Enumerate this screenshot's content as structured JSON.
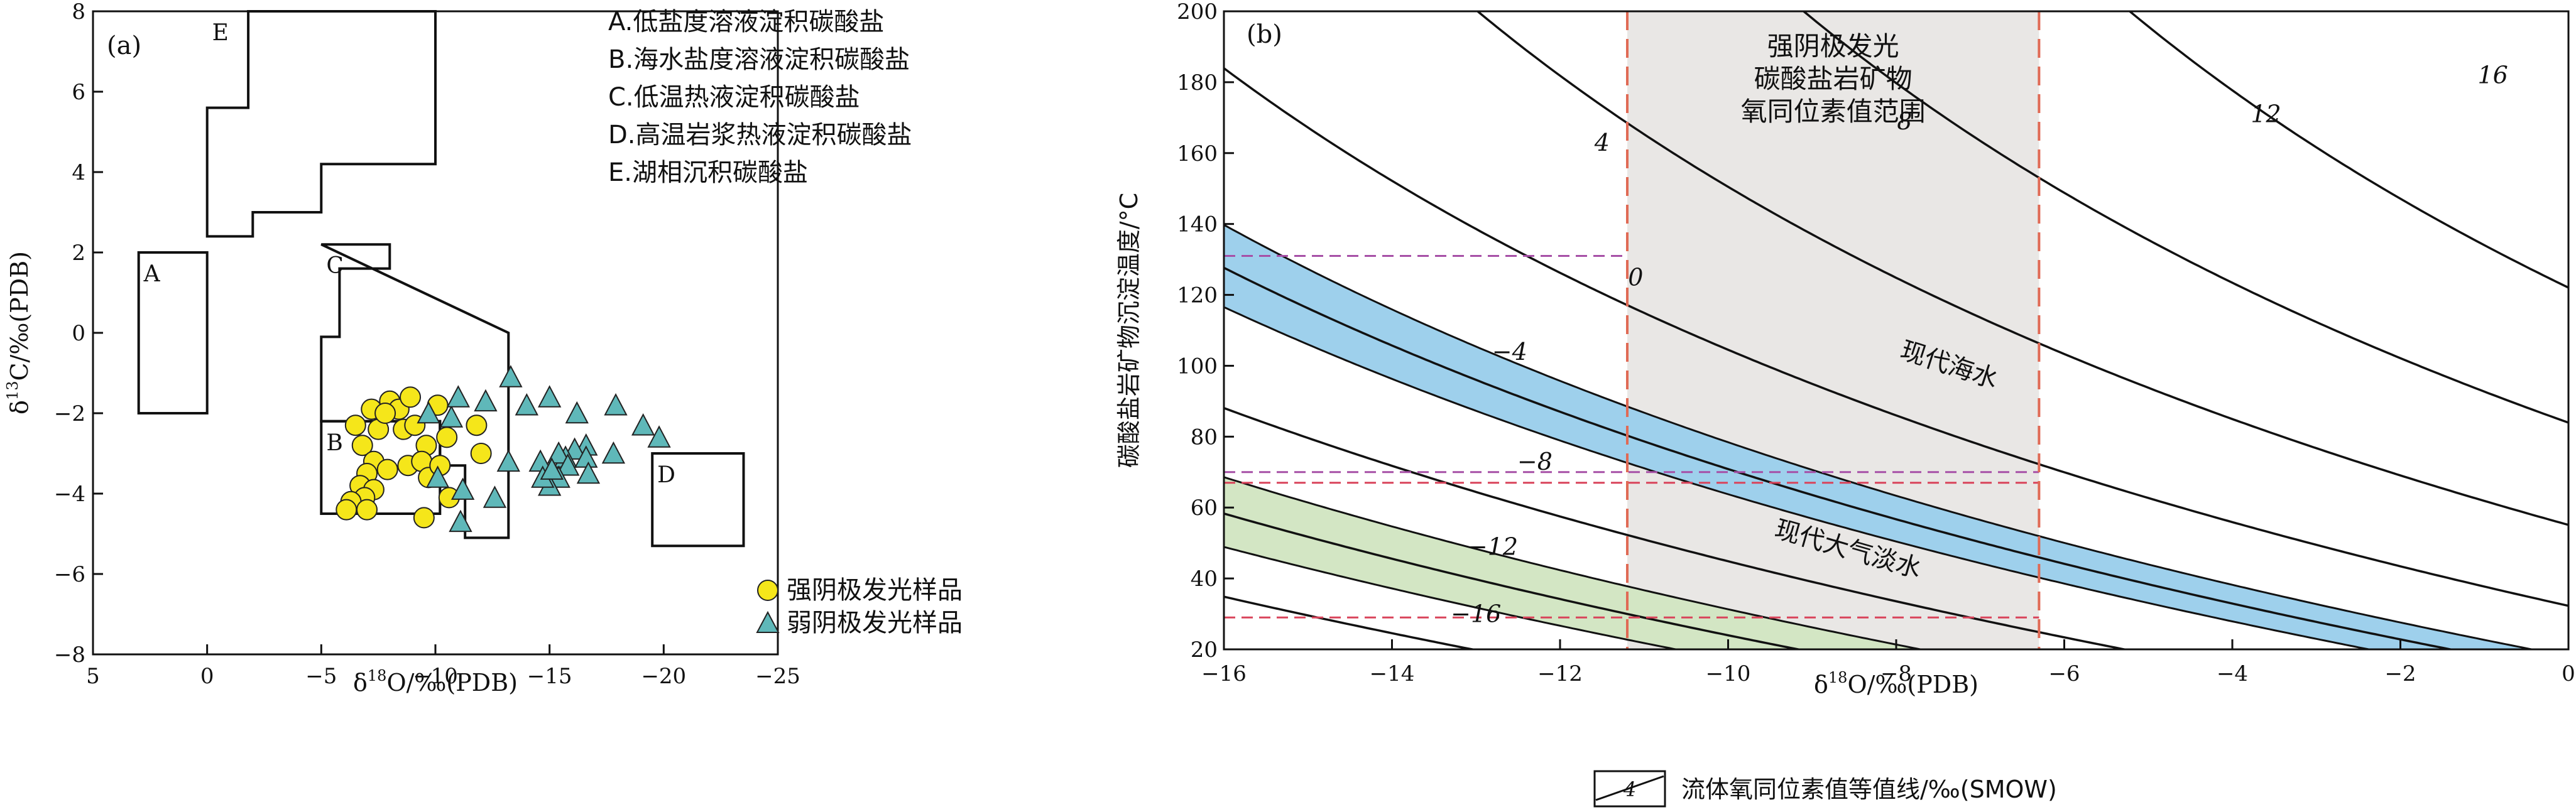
{
  "chart_data": [
    {
      "panel": "(a)",
      "type": "scatter",
      "xlabel_pre": "δ",
      "xlabel_sup": "18",
      "xlabel_post": "O/‰(PDB)",
      "ylabel_pre": "δ",
      "ylabel_sup": "13",
      "ylabel_post": "C/‰(PDB)",
      "xlim": [
        5,
        -25
      ],
      "ylim": [
        -8,
        8
      ],
      "xticks": [
        5,
        0,
        -5,
        -10,
        -15,
        -20,
        -25
      ],
      "yticks": [
        -8,
        -6,
        -4,
        -2,
        0,
        2,
        4,
        6,
        8
      ],
      "xtick_labels": [
        "5",
        "0",
        "−5",
        "−10",
        "−15",
        "−20",
        "−25"
      ],
      "ytick_labels": [
        "−8",
        "−6",
        "−4",
        "−2",
        "0",
        "2",
        "4",
        "6",
        "8"
      ],
      "region_key": [
        "A.低盐度溶液淀积碳酸盐",
        "B.海水盐度溶液淀积碳酸盐",
        "C.低温热液淀积碳酸盐",
        "D.高温岩浆热液淀积碳酸盐",
        "E.湖相沉积碳酸盐"
      ],
      "regions": [
        {
          "label": "A",
          "polygon": [
            [
              3,
              2
            ],
            [
              0,
              2
            ],
            [
              0,
              -2
            ],
            [
              3,
              -2
            ]
          ]
        },
        {
          "label": "B",
          "polygon": [
            [
              -5,
              -2.2
            ],
            [
              -10.2,
              -2.2
            ],
            [
              -10.2,
              -4.5
            ],
            [
              -6.5,
              -4.5
            ],
            [
              -5,
              -4.5
            ]
          ]
        },
        {
          "label": "C",
          "polygon": [
            [
              -5,
              2.2
            ],
            [
              -8,
              2.2
            ],
            [
              -8,
              1.6
            ],
            [
              -5.8,
              1.6
            ],
            [
              -5.8,
              -0.1
            ],
            [
              -5,
              -0.1
            ],
            [
              -5,
              -2.2
            ],
            [
              -10.2,
              -2.2
            ],
            [
              -10.2,
              -3.3
            ],
            [
              -11.3,
              -3.3
            ],
            [
              -11.3,
              -5.1
            ],
            [
              -13.2,
              -5.1
            ],
            [
              -13.2,
              0
            ]
          ]
        },
        {
          "label": "D",
          "polygon": [
            [
              -19.5,
              -3
            ],
            [
              -23.5,
              -3
            ],
            [
              -23.5,
              -5.3
            ],
            [
              -19.5,
              -5.3
            ]
          ]
        },
        {
          "label": "E",
          "polygon": [
            [
              -1.8,
              8
            ],
            [
              -10,
              8
            ],
            [
              -10,
              4.2
            ],
            [
              -5,
              4.2
            ],
            [
              -5,
              3
            ],
            [
              -2,
              3
            ],
            [
              -2,
              2.4
            ],
            [
              0,
              2.4
            ],
            [
              0,
              5.6
            ],
            [
              -1.8,
              5.6
            ]
          ]
        }
      ],
      "legend": [
        "强阴极发光样品",
        "弱阴极发光样品"
      ],
      "series": [
        {
          "name": "强阴极发光样品",
          "marker": "circle",
          "color": "#f5e61a",
          "points": [
            [
              -8,
              -1.7
            ],
            [
              -8.4,
              -1.9
            ],
            [
              -8.9,
              -1.6
            ],
            [
              -7.2,
              -1.9
            ],
            [
              -10.1,
              -1.8
            ],
            [
              -6.5,
              -2.3
            ],
            [
              -7.5,
              -2.4
            ],
            [
              -7.8,
              -2.0
            ],
            [
              -8.6,
              -2.4
            ],
            [
              -9.1,
              -2.3
            ],
            [
              -6.8,
              -2.8
            ],
            [
              -9.6,
              -2.8
            ],
            [
              -10.5,
              -2.6
            ],
            [
              -11.8,
              -2.3
            ],
            [
              -7.3,
              -3.2
            ],
            [
              -7.9,
              -3.4
            ],
            [
              -8.8,
              -3.3
            ],
            [
              -9.4,
              -3.2
            ],
            [
              -7,
              -3.5
            ],
            [
              -12,
              -3.0
            ],
            [
              -6.7,
              -3.8
            ],
            [
              -7.3,
              -3.9
            ],
            [
              -9.7,
              -3.6
            ],
            [
              -10.2,
              -3.3
            ],
            [
              -6.9,
              -4.1
            ],
            [
              -6.3,
              -4.2
            ],
            [
              -10.6,
              -4.1
            ],
            [
              -7,
              -4.4
            ],
            [
              -6.1,
              -4.4
            ],
            [
              -9.5,
              -4.6
            ]
          ]
        },
        {
          "name": "弱阴极发光样品",
          "marker": "triangle",
          "color": "#5fb8b9",
          "points": [
            [
              -9.7,
              -2.0
            ],
            [
              -10.7,
              -2.1
            ],
            [
              -11,
              -1.6
            ],
            [
              -12.2,
              -1.7
            ],
            [
              -13.3,
              -1.1
            ],
            [
              -14,
              -1.8
            ],
            [
              -15,
              -1.6
            ],
            [
              -16.2,
              -2.0
            ],
            [
              -17.9,
              -1.8
            ],
            [
              -19.1,
              -2.3
            ],
            [
              -19.8,
              -2.6
            ],
            [
              -17.8,
              -3.0
            ],
            [
              -16.6,
              -2.8
            ],
            [
              -16.1,
              -2.9
            ],
            [
              -15.7,
              -3.1
            ],
            [
              -13.2,
              -3.2
            ],
            [
              -14.6,
              -3.2
            ],
            [
              -15.4,
              -3.0
            ],
            [
              -16.6,
              -3.1
            ],
            [
              -15.8,
              -3.3
            ],
            [
              -15.4,
              -3.6
            ],
            [
              -15.0,
              -3.8
            ],
            [
              -14.7,
              -3.6
            ],
            [
              -16.7,
              -3.5
            ],
            [
              -10.1,
              -3.6
            ],
            [
              -11.2,
              -3.9
            ],
            [
              -12.6,
              -4.1
            ],
            [
              -11.1,
              -4.7
            ],
            [
              -15.1,
              -3.4
            ]
          ]
        }
      ]
    },
    {
      "panel": "(b)",
      "type": "line",
      "xlabel_pre": "δ",
      "xlabel_sup": "18",
      "xlabel_post": "O/‰(PDB)",
      "ylabel": "碳酸盐岩矿物沉淀温度/°C",
      "xlim": [
        -16,
        0
      ],
      "ylim": [
        20,
        200
      ],
      "xticks": [
        -16,
        -14,
        -12,
        -10,
        -8,
        -6,
        -4,
        -2,
        0
      ],
      "yticks": [
        20,
        40,
        60,
        80,
        100,
        120,
        140,
        160,
        180,
        200
      ],
      "xtick_labels": [
        "−16",
        "−14",
        "−12",
        "−10",
        "−8",
        "−6",
        "−4",
        "−2",
        "0"
      ],
      "ytick_labels": [
        "20",
        "40",
        "60",
        "80",
        "100",
        "120",
        "140",
        "160",
        "180",
        "200"
      ],
      "contour_legend_label": "流体氧同位素值等值线/‰(SMOW)",
      "contour_legend_sample": "4",
      "contours": [
        {
          "label": "−16",
          "label_at": [
            -13.0,
            30
          ]
        },
        {
          "label": "−12",
          "label_at": [
            -12.8,
            49
          ]
        },
        {
          "label": "−8",
          "label_at": [
            -12.3,
            73
          ]
        },
        {
          "label": "−4",
          "label_at": [
            -12.6,
            104
          ]
        },
        {
          "label": "0",
          "label_at": [
            -11.1,
            125
          ]
        },
        {
          "label": "4",
          "label_at": [
            -11.5,
            163
          ]
        },
        {
          "label": "8",
          "label_at": [
            -7.9,
            169
          ]
        },
        {
          "label": "12",
          "label_at": [
            -3.6,
            171
          ]
        },
        {
          "label": "16",
          "label_at": [
            -0.9,
            182
          ]
        }
      ],
      "bands": [
        {
          "name": "现代海水",
          "color": "#9ed0ec",
          "from_contour": "-1",
          "to_contour": "1"
        },
        {
          "name": "现代大气淡水",
          "color": "#d3e6c4",
          "from_contour": "-9.5",
          "to_contour": "-6.5"
        }
      ],
      "shaded_range": {
        "label": [
          "强阴极发光",
          "碳酸盐岩矿物",
          "氧同位素值范围"
        ],
        "x": [
          -11.2,
          -6.3
        ],
        "color": "#e9e7e5"
      },
      "reference_lines": [
        {
          "y": 131,
          "color": "#a64fa6",
          "style": "dashed"
        },
        {
          "y": 70,
          "color": "#a64fa6",
          "style": "dashed"
        },
        {
          "y": 67,
          "color": "#d9435a",
          "style": "dashed"
        },
        {
          "y": 29,
          "color": "#d9435a",
          "style": "dashed"
        }
      ]
    }
  ]
}
